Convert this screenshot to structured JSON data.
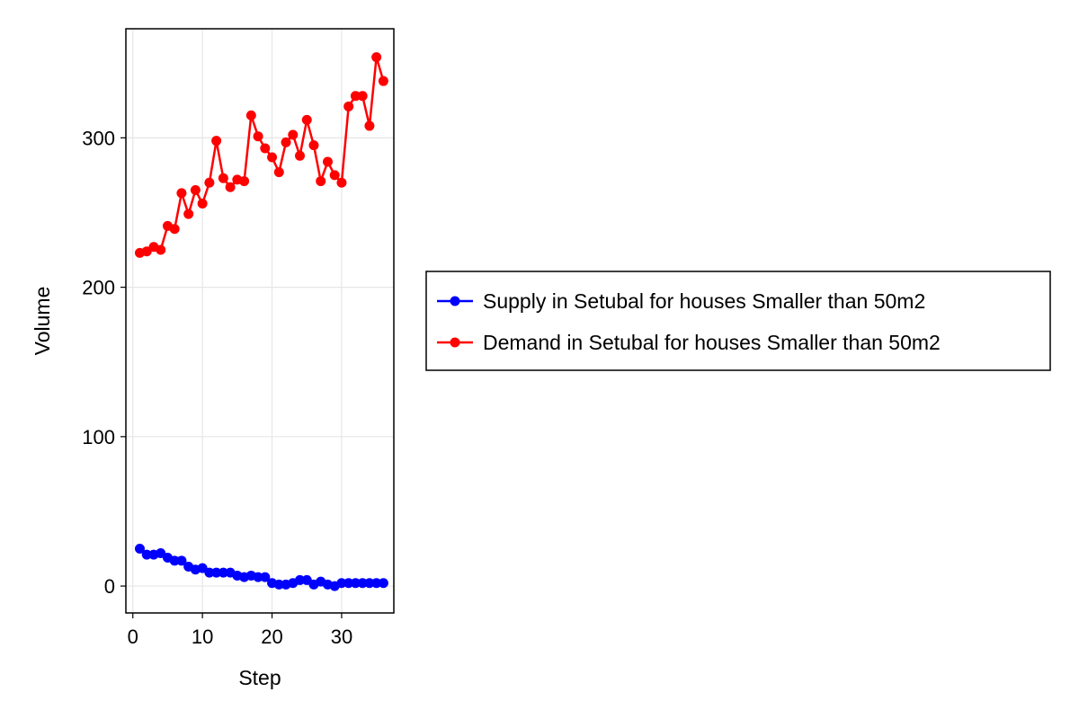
{
  "chart_data": {
    "type": "line",
    "title": "",
    "xlabel": "Step",
    "ylabel": "Volume",
    "xlim": [
      -1,
      37.5
    ],
    "ylim": [
      -18,
      373
    ],
    "xticks": [
      0,
      10,
      20,
      30
    ],
    "yticks": [
      0,
      100,
      200,
      300
    ],
    "grid": true,
    "legend_position": "right",
    "x": [
      1,
      2,
      3,
      4,
      5,
      6,
      7,
      8,
      9,
      10,
      11,
      12,
      13,
      14,
      15,
      16,
      17,
      18,
      19,
      20,
      21,
      22,
      23,
      24,
      25,
      26,
      27,
      28,
      29,
      30,
      31,
      32,
      33,
      34,
      35,
      36
    ],
    "series": [
      {
        "name": "Supply in Setubal for houses Smaller than 50m2",
        "color": "#0000ff",
        "values": [
          25,
          21,
          21,
          22,
          19,
          17,
          17,
          13,
          11,
          12,
          9,
          9,
          9,
          9,
          7,
          6,
          7,
          6,
          6,
          2,
          1,
          1,
          2,
          4,
          4,
          1,
          3,
          1,
          0,
          2,
          2,
          2,
          2,
          2,
          2,
          2
        ]
      },
      {
        "name": "Demand in Setubal for houses Smaller than 50m2",
        "color": "#ff0000",
        "values": [
          223,
          224,
          227,
          225,
          241,
          239,
          263,
          249,
          265,
          256,
          270,
          298,
          273,
          267,
          272,
          271,
          315,
          301,
          293,
          287,
          277,
          297,
          302,
          288,
          312,
          295,
          271,
          284,
          275,
          270,
          321,
          328,
          328,
          308,
          354,
          338
        ]
      }
    ]
  }
}
